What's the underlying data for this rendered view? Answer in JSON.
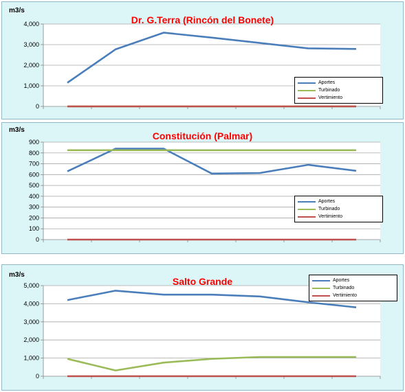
{
  "chart_data": [
    {
      "type": "line",
      "title": "Dr. G.Terra (Rincón del Bonete)",
      "ylabel": "m3/s",
      "xlabel": "",
      "ylim": [
        0,
        4000
      ],
      "yticks": [
        "0",
        "1,000",
        "2,000",
        "3,000",
        "4,000"
      ],
      "ytick_values": [
        0,
        1000,
        2000,
        3000,
        4000
      ],
      "grid": true,
      "legend_position": "bottom-right",
      "series": [
        {
          "name": "Aportes",
          "color": "#4a7ebb",
          "values": [
            1150,
            2770,
            3580,
            3340,
            3080,
            2820,
            2790
          ]
        },
        {
          "name": "Turbinado",
          "color": "#9bbb59",
          "values": [
            0,
            0,
            0,
            0,
            0,
            0,
            0
          ]
        },
        {
          "name": "Vertimiento",
          "color": "#c0504d",
          "values": [
            0,
            0,
            0,
            0,
            0,
            0,
            0
          ]
        }
      ]
    },
    {
      "type": "line",
      "title": "Constitución (Palmar)",
      "ylabel": "m3/s",
      "xlabel": "",
      "ylim": [
        0,
        900
      ],
      "yticks": [
        "0",
        "100",
        "200",
        "300",
        "400",
        "500",
        "600",
        "700",
        "800",
        "900"
      ],
      "ytick_values": [
        0,
        100,
        200,
        300,
        400,
        500,
        600,
        700,
        800,
        900
      ],
      "grid": true,
      "legend_position": "bottom-right",
      "series": [
        {
          "name": "Aportes",
          "color": "#4a7ebb",
          "values": [
            630,
            840,
            840,
            610,
            615,
            690,
            635
          ]
        },
        {
          "name": "Turbinado",
          "color": "#9bbb59",
          "values": [
            825,
            825,
            825,
            825,
            825,
            825,
            825
          ]
        },
        {
          "name": "Vertimiento",
          "color": "#c0504d",
          "values": [
            0,
            0,
            0,
            0,
            0,
            0,
            0
          ]
        }
      ]
    },
    {
      "type": "line",
      "title": "Salto Grande",
      "ylabel": "m3/s",
      "xlabel": "",
      "ylim": [
        0,
        5000
      ],
      "yticks": [
        "0",
        "1,000",
        "2,000",
        "3,000",
        "4,000",
        "5,000"
      ],
      "ytick_values": [
        0,
        1000,
        2000,
        3000,
        4000,
        5000
      ],
      "grid": true,
      "legend_position": "top-right",
      "series": [
        {
          "name": "Aportes",
          "color": "#4a7ebb",
          "values": [
            4200,
            4720,
            4500,
            4500,
            4400,
            4080,
            3800
          ]
        },
        {
          "name": "Turbinado",
          "color": "#9bbb59",
          "values": [
            960,
            320,
            750,
            960,
            1060,
            1060,
            1060
          ]
        },
        {
          "name": "Vertimiento",
          "color": "#c0504d",
          "values": [
            0,
            0,
            0,
            0,
            0,
            0,
            0
          ]
        }
      ]
    }
  ]
}
